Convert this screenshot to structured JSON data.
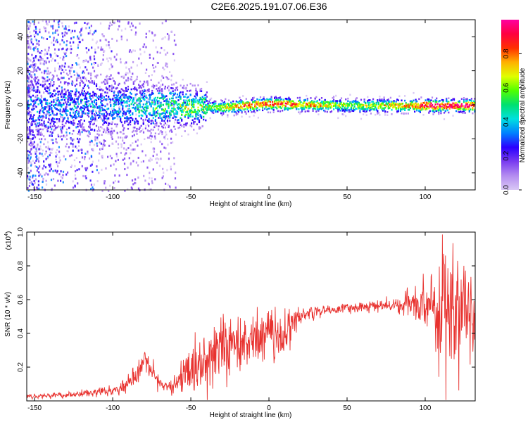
{
  "title": "C2E6.2025.191.07.06.E36",
  "colors": {
    "snr_line": "#e8322f",
    "spectrogram_background": "#ffffff",
    "colormap": [
      "#d9c8f5",
      "#b48cf0",
      "#7a3cf0",
      "#2a00ff",
      "#0080ff",
      "#00e0e0",
      "#00e070",
      "#50ff00",
      "#e0ff00",
      "#ffb000",
      "#ff3000",
      "#ff0040",
      "#ff00a0"
    ]
  },
  "chart_data": [
    {
      "type": "heatmap",
      "xlabel": "Height of straight line (km)",
      "ylabel": "Frequency (Hz)",
      "xlim": [
        -155,
        132
      ],
      "ylim": [
        -50,
        50
      ],
      "xticks": [
        -150,
        -100,
        -50,
        0,
        50,
        100
      ],
      "yticks": [
        -40,
        -20,
        0,
        20,
        40
      ],
      "colorbar": {
        "label": "Normalized spectral amplitude",
        "range": [
          0,
          1
        ],
        "ticks": [
          0.0,
          0.2,
          0.4,
          0.6,
          0.8
        ]
      },
      "description_values": {
        "ridge_frequency_hz": [
          {
            "x": -155,
            "f": 0
          },
          {
            "x": -100,
            "f": 0
          },
          {
            "x": -50,
            "f": -1
          },
          {
            "x": -30,
            "f": -1
          },
          {
            "x": 0,
            "f": 1
          },
          {
            "x": 50,
            "f": 0
          },
          {
            "x": 100,
            "f": 0
          },
          {
            "x": 132,
            "f": 0
          }
        ],
        "ridge_amplitude": [
          {
            "x": -155,
            "a": 0.3
          },
          {
            "x": -100,
            "a": 0.35
          },
          {
            "x": -60,
            "a": 0.5
          },
          {
            "x": -40,
            "a": 0.55
          },
          {
            "x": -10,
            "a": 0.85
          },
          {
            "x": 0,
            "a": 0.9
          },
          {
            "x": 50,
            "a": 0.6
          },
          {
            "x": 90,
            "a": 0.75
          },
          {
            "x": 100,
            "a": 0.95
          },
          {
            "x": 132,
            "a": 0.95
          }
        ]
      }
    },
    {
      "type": "line",
      "xlabel": "Height of straight line (km)",
      "ylabel": "SNR (10 * v/v)",
      "y_multiplier": "(x10",
      "y_multiplier_exp": "4",
      "y_multiplier_close": ")",
      "xlim": [
        -155,
        132
      ],
      "ylim": [
        0,
        1.0
      ],
      "xticks": [
        -150,
        -100,
        -50,
        0,
        50,
        100
      ],
      "yticks": [
        0.2,
        0.4,
        0.6,
        0.8,
        1.0
      ],
      "series": [
        {
          "x": [
            -155,
            -140,
            -120,
            -100,
            -95,
            -90,
            -85,
            -80,
            -75,
            -70,
            -65,
            -60,
            -55,
            -50,
            -45,
            -40,
            -35,
            -30,
            -25,
            -20,
            -15,
            -10,
            -5,
            0,
            5,
            10,
            15,
            20,
            25,
            30,
            40,
            50,
            60,
            70,
            80,
            85,
            88,
            90,
            95,
            100,
            105,
            110,
            115,
            120,
            125,
            132
          ],
          "y": [
            0.03,
            0.03,
            0.04,
            0.06,
            0.08,
            0.1,
            0.15,
            0.22,
            0.17,
            0.1,
            0.09,
            0.1,
            0.14,
            0.18,
            0.22,
            0.25,
            0.28,
            0.33,
            0.35,
            0.36,
            0.33,
            0.37,
            0.38,
            0.4,
            0.38,
            0.4,
            0.45,
            0.5,
            0.52,
            0.53,
            0.54,
            0.55,
            0.56,
            0.56,
            0.57,
            0.56,
            0.59,
            0.55,
            0.57,
            0.58,
            0.58,
            0.56,
            0.55,
            0.56,
            0.57,
            0.52
          ],
          "noise": [
            0.008,
            0.008,
            0.01,
            0.015,
            0.02,
            0.02,
            0.03,
            0.04,
            0.03,
            0.02,
            0.02,
            0.03,
            0.06,
            0.07,
            0.08,
            0.08,
            0.09,
            0.1,
            0.1,
            0.1,
            0.09,
            0.09,
            0.09,
            0.08,
            0.07,
            0.08,
            0.06,
            0.03,
            0.02,
            0.02,
            0.015,
            0.015,
            0.015,
            0.015,
            0.02,
            0.02,
            0.05,
            0.06,
            0.04,
            0.08,
            0.12,
            0.18,
            0.2,
            0.18,
            0.15,
            0.15
          ]
        }
      ]
    }
  ]
}
